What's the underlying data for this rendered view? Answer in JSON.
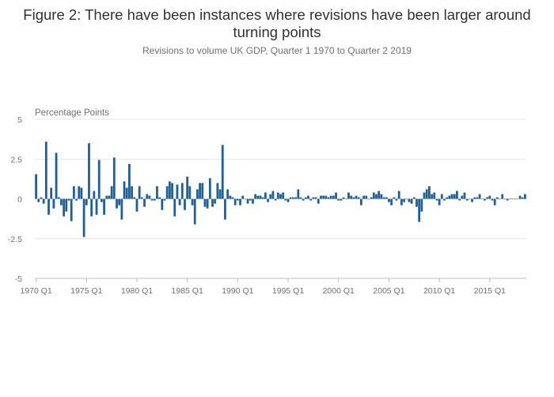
{
  "header": {
    "title": "Figure 2: There have been instances where revisions have been larger around turning points",
    "subtitle": "Revisions to volume UK GDP, Quarter 1 1970 to Quarter 2 2019"
  },
  "colors": {
    "bar": "#206095",
    "grid": "#e6e6e6",
    "axis": "#bfbfbf",
    "text": "#707070"
  },
  "chart_data": {
    "type": "bar",
    "title": "Figure 2: There have been instances where revisions have been larger around turning points",
    "subtitle": "Revisions to volume UK GDP, Quarter 1 1970 to Quarter 2 2019",
    "ylabel": "Percentage Points",
    "xlabel": "",
    "ylim": [
      -5,
      5
    ],
    "yticks": [
      5,
      2.5,
      0,
      -2.5,
      -5
    ],
    "ytick_labels": [
      "5",
      "2.5",
      "0",
      "-2.5",
      "-5"
    ],
    "xtick_labels": [
      "1970 Q1",
      "1975 Q1",
      "1980 Q1",
      "1985 Q1",
      "1990 Q1",
      "1995 Q1",
      "2000 Q1",
      "2005 Q1",
      "2010 Q1",
      "2015 Q1"
    ],
    "start": "1970 Q1",
    "grid": true,
    "legend": "none",
    "series": [
      {
        "values": [
          1.55,
          -0.2,
          0.1,
          -0.3,
          3.6,
          -1.0,
          0.7,
          -0.6,
          2.9,
          0.1,
          -0.4,
          -1.1,
          -0.8,
          -0.1,
          -1.4,
          0.8,
          -0.1,
          0.8,
          0.7,
          -2.4,
          -0.4,
          3.5,
          -1.1,
          0.5,
          -1.0,
          2.45,
          -0.2,
          -1.0,
          0.2,
          0.2,
          0.8,
          2.6,
          -0.6,
          -0.4,
          -1.3,
          1.1,
          0.7,
          2.2,
          0.8,
          0.1,
          -0.8,
          0.8,
          0.1,
          -0.5,
          0.3,
          0.2,
          -0.1,
          -0.1,
          0.8,
          0.1,
          -0.7,
          -0.1,
          0.8,
          1.1,
          1.0,
          -1.1,
          0.9,
          -0.4,
          1.0,
          -0.7,
          1.4,
          0.8,
          -0.4,
          -1.6,
          0.6,
          1.0,
          1.0,
          -0.5,
          -0.6,
          1.3,
          -0.5,
          -0.3,
          1.0,
          0.6,
          3.4,
          -1.3,
          0.6,
          0.2,
          0.1,
          -0.4,
          -0.1,
          -0.4,
          0.2,
          0.0,
          -0.3,
          -0.1,
          -0.3,
          0.3,
          0.2,
          0.2,
          0.1,
          0.4,
          -0.2,
          0.3,
          0.5,
          -0.1,
          0.4,
          0.3,
          0.4,
          -0.1,
          -0.2,
          0.1,
          0.1,
          0.1,
          0.6,
          0.1,
          -0.1,
          0.1,
          0.2,
          -0.1,
          0.1,
          0.1,
          -0.3,
          0.2,
          0.2,
          0.2,
          0.1,
          0.2,
          0.2,
          0.4,
          -0.1,
          -0.1,
          0.1,
          0.0,
          0.4,
          0.2,
          0.1,
          0.2,
          0.1,
          -0.4,
          0.2,
          0.2,
          0.0,
          0.1,
          0.4,
          0.3,
          0.5,
          0.3,
          0.1,
          0.1,
          -0.2,
          -0.4,
          0.1,
          -0.1,
          0.5,
          -0.4,
          -0.2,
          0.0,
          -0.2,
          -0.3,
          0.1,
          -0.5,
          -1.45,
          -0.8,
          0.4,
          0.6,
          0.8,
          0.3,
          0.4,
          -0.1,
          -0.4,
          0.3,
          -0.1,
          0.1,
          0.2,
          0.3,
          0.3,
          0.5,
          -0.1,
          0.2,
          0.4,
          -0.1,
          0.0,
          -0.2,
          0.1,
          0.1,
          0.3,
          0.0,
          -0.1,
          0.1,
          0.2,
          -0.1,
          -0.4,
          0.1,
          0.0,
          0.3,
          0.0,
          -0.1,
          0.0,
          0.0,
          0.0,
          0.0,
          0.2,
          0.1,
          0.3
        ]
      }
    ]
  }
}
